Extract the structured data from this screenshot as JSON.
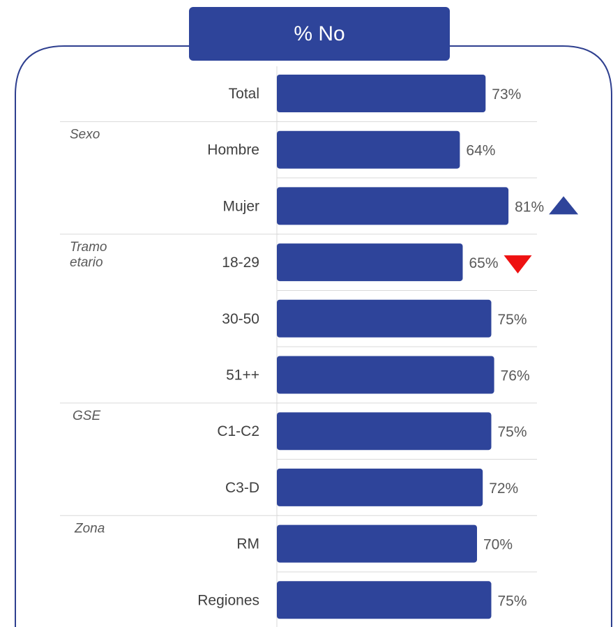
{
  "title": "% No",
  "colors": {
    "bar": "#2e449a",
    "frame": "#2e3f8f",
    "up_marker": "#2e449a",
    "down_marker": "#ee1111",
    "separator": "#d9d9d9"
  },
  "groups": [
    {
      "label_lines": [
        "Sexo"
      ],
      "rows": [
        "Hombre",
        "Mujer"
      ]
    },
    {
      "label_lines": [
        "Tramo",
        "etario"
      ],
      "rows": [
        "18-29",
        "30-50",
        "51++"
      ]
    },
    {
      "label_lines": [
        "GSE"
      ],
      "rows": [
        "C1-C2",
        "C3-D"
      ]
    },
    {
      "label_lines": [
        "Zona"
      ],
      "rows": [
        "RM",
        "Regiones"
      ]
    }
  ],
  "chart_data": {
    "type": "bar",
    "orientation": "horizontal",
    "categories": [
      "Total",
      "Hombre",
      "Mujer",
      "18-29",
      "30-50",
      "51++",
      "C1-C2",
      "C3-D",
      "RM",
      "Regiones"
    ],
    "values": [
      73,
      64,
      81,
      65,
      75,
      76,
      75,
      72,
      70,
      75
    ],
    "value_labels": [
      "73%",
      "64%",
      "81%",
      "65%",
      "75%",
      "76%",
      "75%",
      "72%",
      "70%",
      "75%"
    ],
    "markers": {
      "Mujer": "up",
      "18-29": "down"
    },
    "xlim": [
      0,
      100
    ],
    "title": "% No"
  }
}
